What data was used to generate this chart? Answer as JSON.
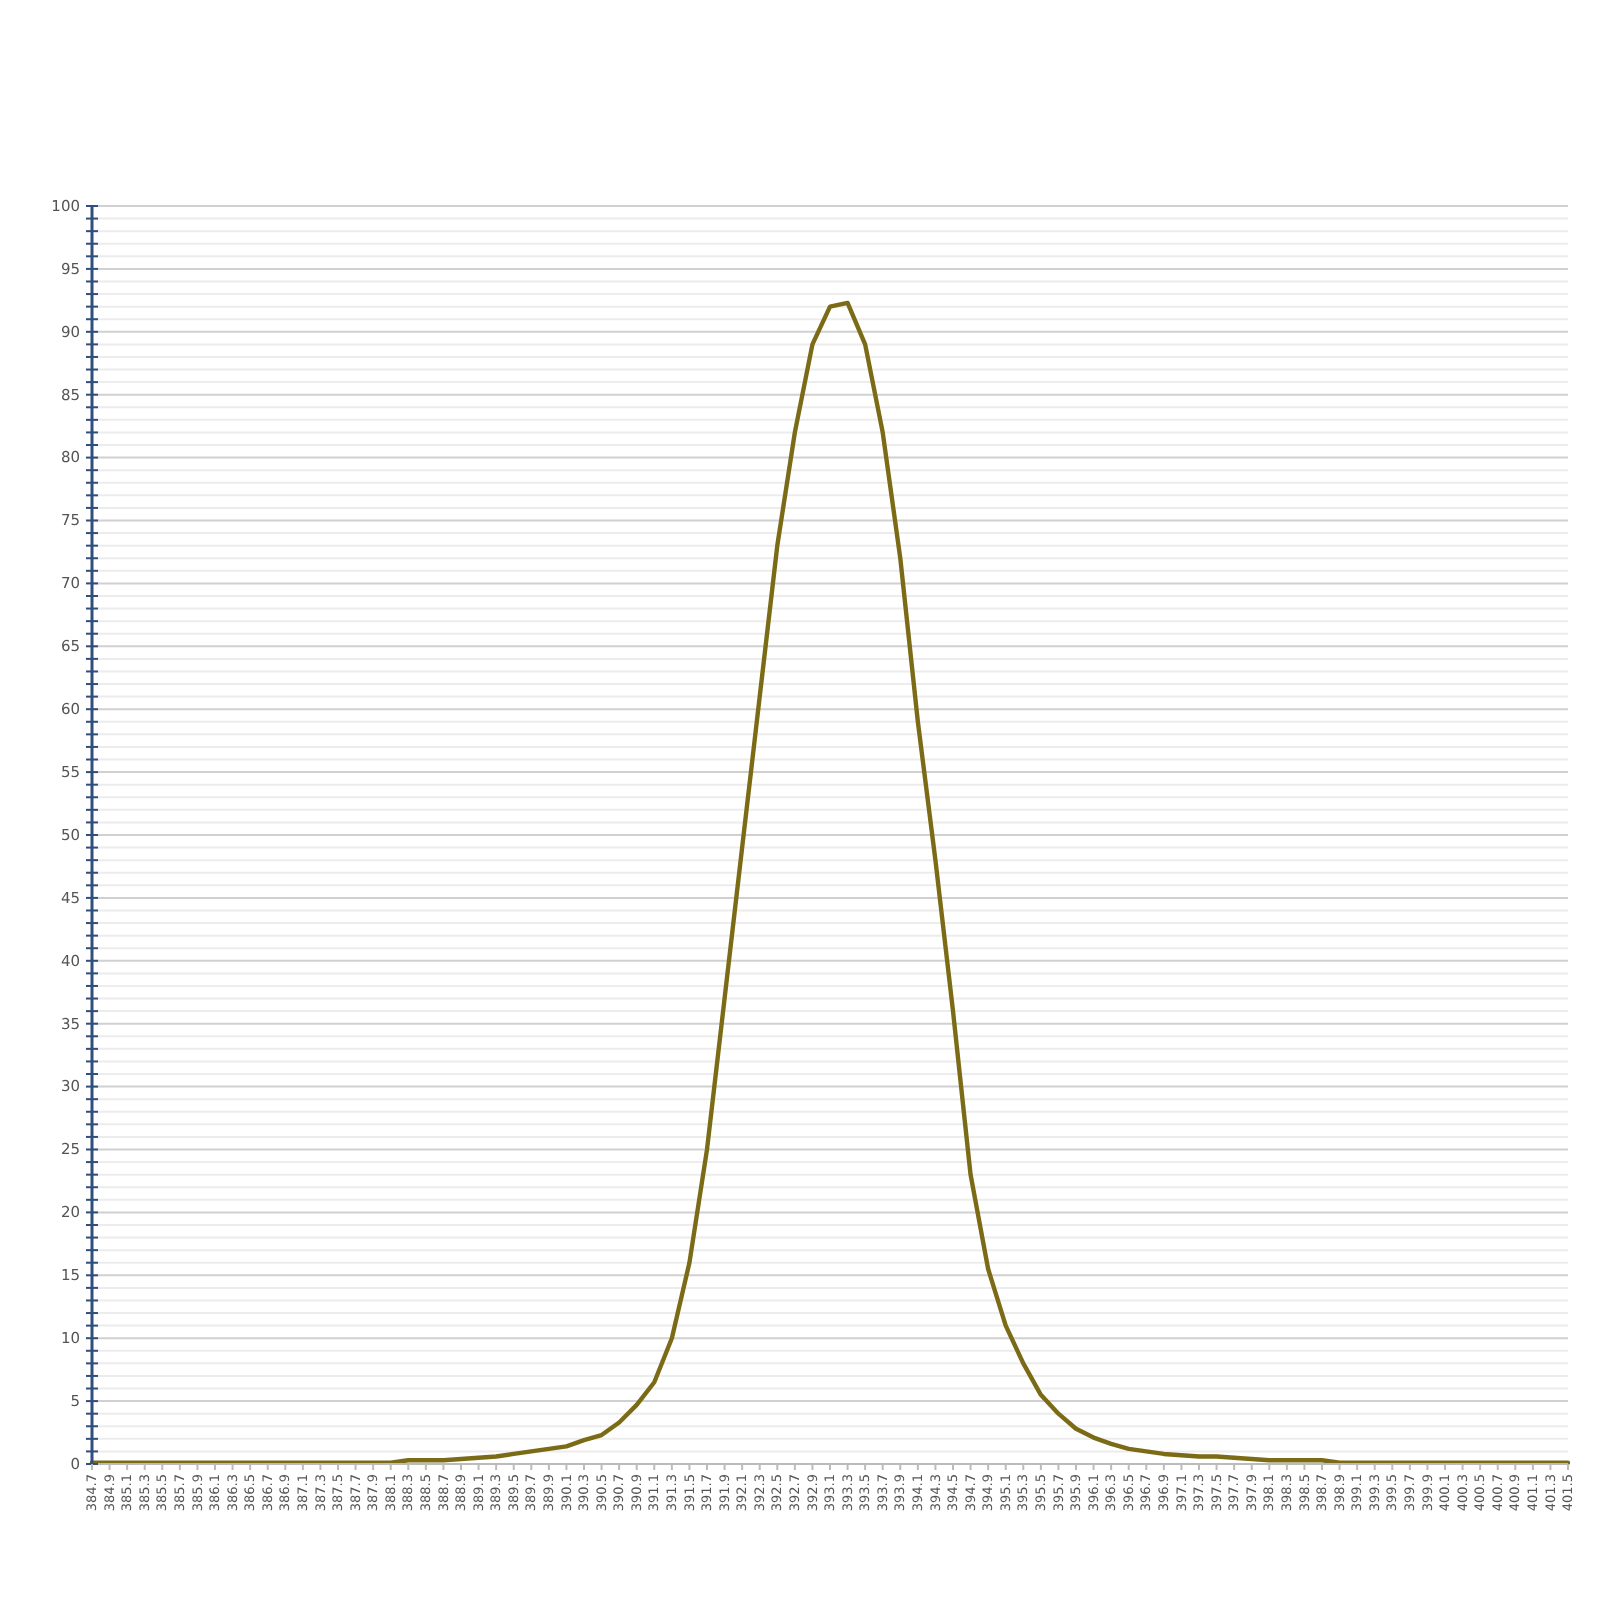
{
  "chart_data": {
    "type": "line",
    "x": [
      384.7,
      384.9,
      385.1,
      385.3,
      385.5,
      385.7,
      385.9,
      386.1,
      386.3,
      386.5,
      386.7,
      386.9,
      387.1,
      387.3,
      387.5,
      387.7,
      387.9,
      388.1,
      388.3,
      388.5,
      388.7,
      388.9,
      389.1,
      389.3,
      389.5,
      389.7,
      389.9,
      390.1,
      390.3,
      390.5,
      390.7,
      390.9,
      391.1,
      391.3,
      391.5,
      391.7,
      391.9,
      392.1,
      392.3,
      392.5,
      392.7,
      392.9,
      393.1,
      393.3,
      393.5,
      393.7,
      393.9,
      394.1,
      394.3,
      394.5,
      394.7,
      394.9,
      395.1,
      395.3,
      395.5,
      395.7,
      395.9,
      396.1,
      396.3,
      396.5,
      396.7,
      396.9,
      397.1,
      397.3,
      397.5,
      397.7,
      397.9,
      398.1,
      398.3,
      398.5,
      398.7,
      398.9,
      399.1,
      399.3,
      399.5,
      399.7,
      399.9,
      400.1,
      400.3,
      400.5,
      400.7,
      400.9,
      401.1,
      401.3,
      401.5
    ],
    "series": [
      {
        "color": "#7b6b16",
        "values": [
          0.1,
          0.1,
          0.1,
          0.1,
          0.1,
          0.1,
          0.1,
          0.1,
          0.1,
          0.1,
          0.1,
          0.1,
          0.1,
          0.1,
          0.1,
          0.1,
          0.1,
          0.1,
          0.3,
          0.3,
          0.3,
          0.4,
          0.5,
          0.6,
          0.8,
          1.0,
          1.2,
          1.4,
          1.9,
          2.3,
          3.3,
          4.7,
          6.5,
          10,
          16,
          25,
          37,
          49,
          61,
          73,
          82,
          89,
          92,
          92.3,
          89,
          82,
          72,
          59,
          48,
          36,
          23,
          15.5,
          11,
          8,
          5.5,
          4,
          2.8,
          2.1,
          1.6,
          1.2,
          1.0,
          0.8,
          0.7,
          0.6,
          0.6,
          0.5,
          0.4,
          0.3,
          0.3,
          0.3,
          0.3,
          0.1,
          0.1,
          0.1,
          0.1,
          0.1,
          0.1,
          0.1,
          0.1,
          0.1,
          0.1,
          0.1,
          0.1,
          0.1,
          0.1
        ]
      }
    ],
    "xlim": [
      384.7,
      401.5
    ],
    "xticks": [
      384.7,
      384.9,
      385.1,
      385.3,
      385.5,
      385.7,
      385.9,
      386.1,
      386.3,
      386.5,
      386.7,
      386.9,
      387.1,
      387.3,
      387.5,
      387.7,
      387.9,
      388.1,
      388.3,
      388.5,
      388.7,
      388.9,
      389.1,
      389.3,
      389.5,
      389.7,
      389.9,
      390.1,
      390.3,
      390.5,
      390.7,
      390.9,
      391.1,
      391.3,
      391.5,
      391.7,
      391.9,
      392.1,
      392.3,
      392.5,
      392.7,
      392.9,
      393.1,
      393.3,
      393.5,
      393.7,
      393.9,
      394.1,
      394.3,
      394.5,
      394.7,
      394.9,
      395.1,
      395.3,
      395.5,
      395.7,
      395.9,
      396.1,
      396.3,
      396.5,
      396.7,
      396.9,
      397.1,
      397.3,
      397.5,
      397.7,
      397.9,
      398.1,
      398.3,
      398.5,
      398.7,
      398.9,
      399.1,
      399.3,
      399.5,
      399.7,
      399.9,
      400.1,
      400.3,
      400.5,
      400.7,
      400.9,
      401.1,
      401.3,
      401.5
    ],
    "ylim": [
      0,
      100
    ],
    "yticks": [
      0,
      {
        "value": 1,
        "label": null
      },
      {
        "value": 2,
        "label": null
      },
      {
        "value": 3,
        "label": null
      },
      {
        "value": 4,
        "label": null
      },
      5,
      {
        "value": 6,
        "label": null
      },
      {
        "value": 7,
        "label": null
      },
      {
        "value": 8,
        "label": null
      },
      {
        "value": 9,
        "label": null
      },
      10,
      {
        "value": 11,
        "label": null
      },
      {
        "value": 12,
        "label": null
      },
      {
        "value": 13,
        "label": null
      },
      {
        "value": 14,
        "label": null
      },
      15,
      {
        "value": 16,
        "label": null
      },
      {
        "value": 17,
        "label": null
      },
      {
        "value": 18,
        "label": null
      },
      {
        "value": 19,
        "label": null
      },
      20,
      {
        "value": 21,
        "label": null
      },
      {
        "value": 22,
        "label": null
      },
      {
        "value": 23,
        "label": null
      },
      {
        "value": 24,
        "label": null
      },
      25,
      {
        "value": 26,
        "label": null
      },
      {
        "value": 27,
        "label": null
      },
      {
        "value": 28,
        "label": null
      },
      {
        "value": 29,
        "label": null
      },
      30,
      {
        "value": 31,
        "label": null
      },
      {
        "value": 32,
        "label": null
      },
      {
        "value": 33,
        "label": null
      },
      {
        "value": 34,
        "label": null
      },
      35,
      {
        "value": 36,
        "label": null
      },
      {
        "value": 37,
        "label": null
      },
      {
        "value": 38,
        "label": null
      },
      {
        "value": 39,
        "label": null
      },
      40,
      {
        "value": 41,
        "label": null
      },
      {
        "value": 42,
        "label": null
      },
      {
        "value": 43,
        "label": null
      },
      {
        "value": 44,
        "label": null
      },
      45,
      {
        "value": 46,
        "label": null
      },
      {
        "value": 47,
        "label": null
      },
      {
        "value": 48,
        "label": null
      },
      {
        "value": 49,
        "label": null
      },
      50,
      {
        "value": 51,
        "label": null
      },
      {
        "value": 52,
        "label": null
      },
      {
        "value": 53,
        "label": null
      },
      {
        "value": 54,
        "label": null
      },
      55,
      {
        "value": 56,
        "label": null
      },
      {
        "value": 57,
        "label": null
      },
      {
        "value": 58,
        "label": null
      },
      {
        "value": 59,
        "label": null
      },
      60,
      {
        "value": 61,
        "label": null
      },
      {
        "value": 62,
        "label": null
      },
      {
        "value": 63,
        "label": null
      },
      {
        "value": 64,
        "label": null
      },
      65,
      {
        "value": 66,
        "label": null
      },
      {
        "value": 67,
        "label": null
      },
      {
        "value": 68,
        "label": null
      },
      {
        "value": 69,
        "label": null
      },
      70,
      {
        "value": 71,
        "label": null
      },
      {
        "value": 72,
        "label": null
      },
      {
        "value": 73,
        "label": null
      },
      {
        "value": 74,
        "label": null
      },
      75,
      {
        "value": 76,
        "label": null
      },
      {
        "value": 77,
        "label": null
      },
      {
        "value": 78,
        "label": null
      },
      {
        "value": 79,
        "label": null
      },
      80,
      {
        "value": 81,
        "label": null
      },
      {
        "value": 82,
        "label": null
      },
      {
        "value": 83,
        "label": null
      },
      {
        "value": 84,
        "label": null
      },
      85,
      {
        "value": 86,
        "label": null
      },
      {
        "value": 87,
        "label": null
      },
      {
        "value": 88,
        "label": null
      },
      {
        "value": 89,
        "label": null
      },
      90,
      {
        "value": 91,
        "label": null
      },
      {
        "value": 92,
        "label": null
      },
      {
        "value": 93,
        "label": null
      },
      {
        "value": 94,
        "label": null
      },
      95,
      {
        "value": 96,
        "label": null
      },
      {
        "value": 97,
        "label": null
      },
      {
        "value": 98,
        "label": null
      },
      {
        "value": 99,
        "label": null
      },
      100
    ],
    "grid": "y"
  }
}
